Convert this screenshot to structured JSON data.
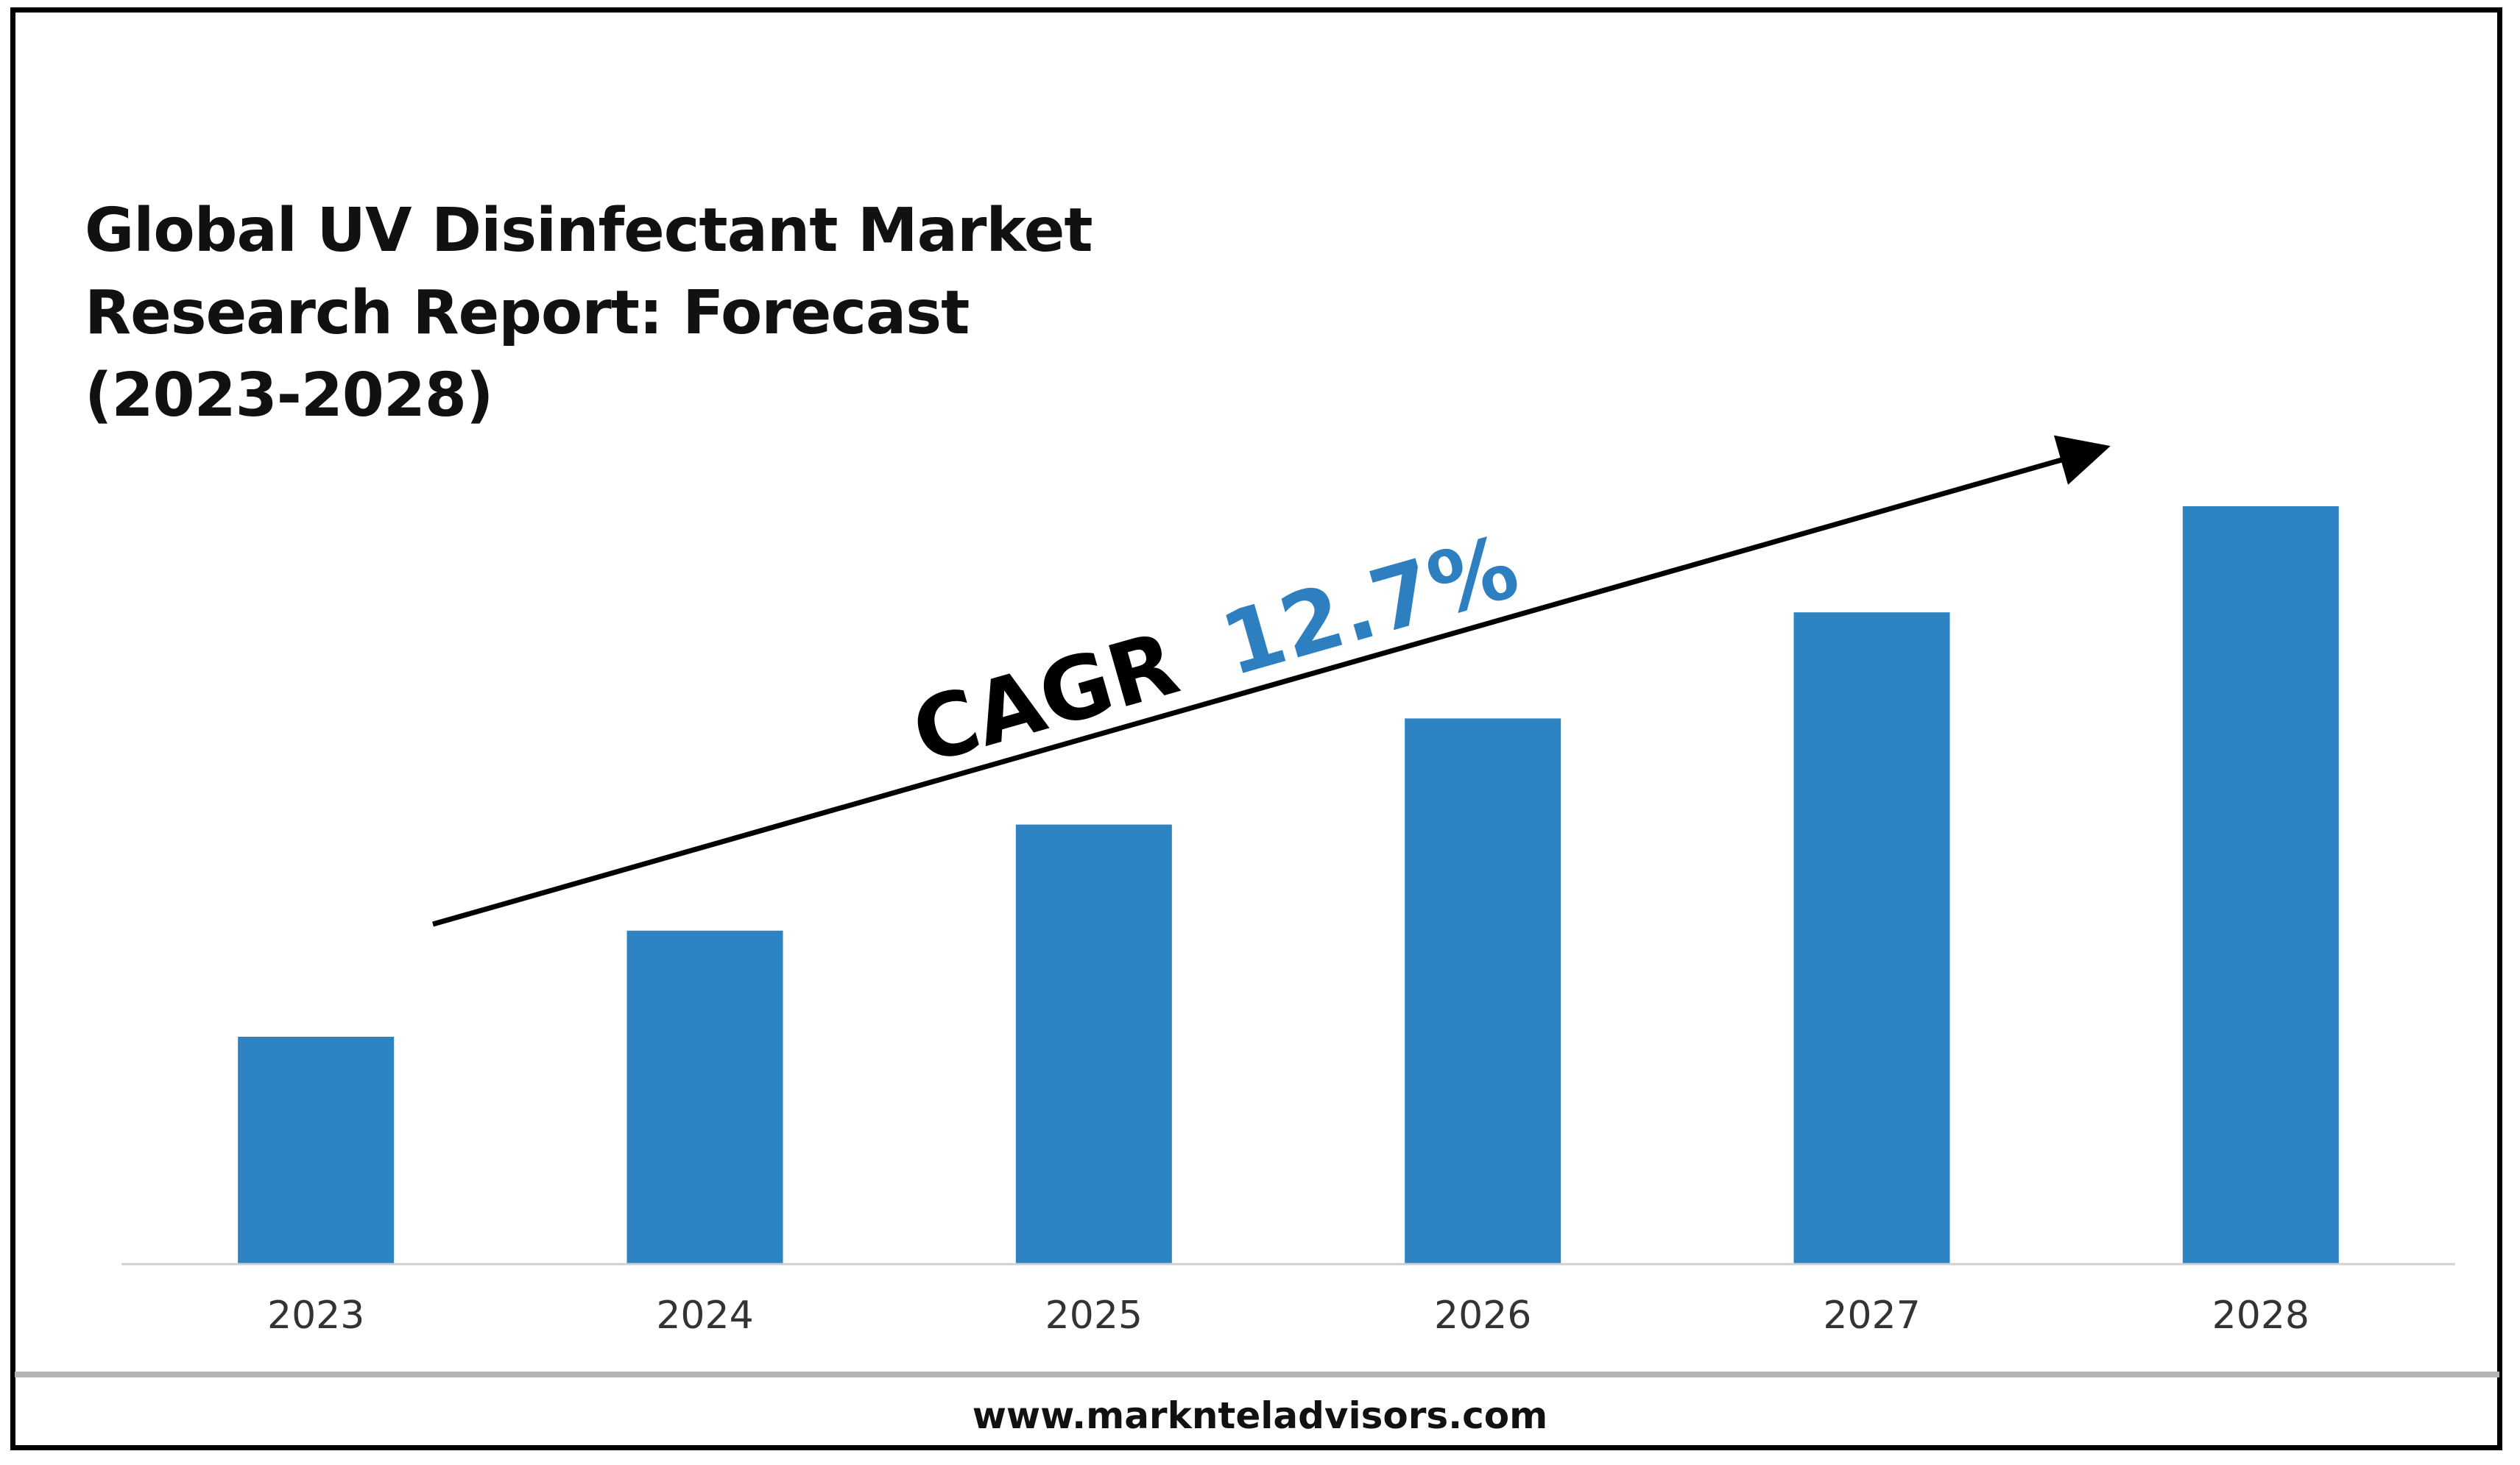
{
  "title_lines": [
    "Global UV Disinfectant Market",
    "Research Report: Forecast",
    "(2023-2028)"
  ],
  "annotation": {
    "prefix": "CAGR",
    "value": "12.7%"
  },
  "footer": {
    "url": "www.marknteladvisors.com"
  },
  "colors": {
    "bar": "#2e83c3",
    "annotation_value": "#2e7fc0",
    "text": "#111111",
    "tick_text": "#333333",
    "axis": "#d0d0d0"
  },
  "chart_data": {
    "type": "bar",
    "title": "Global UV Disinfectant Market Research Report: Forecast (2023-2028)",
    "categories": [
      "2023",
      "2024",
      "2025",
      "2026",
      "2027",
      "2028"
    ],
    "values": [
      30,
      44,
      58,
      72,
      86,
      100
    ],
    "ylim": [
      0,
      100
    ],
    "xlabel": "",
    "ylabel": "",
    "grid": false,
    "legend": "none"
  }
}
